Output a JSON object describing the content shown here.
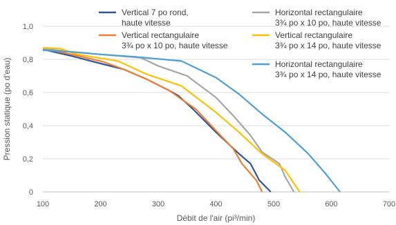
{
  "chart_data": {
    "type": "line",
    "xlabel": "Débit de l'air (pi³/min)",
    "ylabel": "Pression statique (po d'eau)",
    "xlim": [
      100,
      700
    ],
    "ylim": [
      0,
      1.0
    ],
    "x_ticks": [
      "100",
      "200",
      "300",
      "400",
      "500",
      "600",
      "700"
    ],
    "y_ticks": [
      "0",
      "0,2",
      "0,4",
      "0,6",
      "0,8",
      "1,0"
    ],
    "grid": "horizontal",
    "legend_position": "top",
    "series": [
      {
        "name_lines": [
          "Vertical 7 po rond,",
          "haute vitesse"
        ],
        "color": "#2e5597",
        "points": [
          [
            100,
            0.86
          ],
          [
            150,
            0.82
          ],
          [
            200,
            0.775
          ],
          [
            240,
            0.74
          ],
          [
            280,
            0.68
          ],
          [
            320,
            0.61
          ],
          [
            335,
            0.58
          ],
          [
            360,
            0.5
          ],
          [
            400,
            0.36
          ],
          [
            440,
            0.23
          ],
          [
            460,
            0.17
          ],
          [
            475,
            0.07
          ],
          [
            495,
            0.0
          ]
        ]
      },
      {
        "name_lines": [
          "Vertical rectangulaire",
          "3¾ po x 10 po, haute vitesse"
        ],
        "color": "#ed7d31",
        "points": [
          [
            100,
            0.865
          ],
          [
            150,
            0.83
          ],
          [
            205,
            0.785
          ],
          [
            240,
            0.74
          ],
          [
            280,
            0.68
          ],
          [
            320,
            0.61
          ],
          [
            340,
            0.56
          ],
          [
            365,
            0.5
          ],
          [
            400,
            0.37
          ],
          [
            430,
            0.26
          ],
          [
            445,
            0.17
          ],
          [
            470,
            0.07
          ],
          [
            480,
            0.0
          ]
        ]
      },
      {
        "name_lines": [
          "Horizontal rectangulaire",
          "3¾ po x 10 po, haute vitesse"
        ],
        "color": "#a5a5a5",
        "points": [
          [
            100,
            0.865
          ],
          [
            150,
            0.845
          ],
          [
            200,
            0.83
          ],
          [
            270,
            0.81
          ],
          [
            300,
            0.76
          ],
          [
            350,
            0.7
          ],
          [
            400,
            0.57
          ],
          [
            430,
            0.46
          ],
          [
            460,
            0.34
          ],
          [
            480,
            0.24
          ],
          [
            510,
            0.17
          ],
          [
            520,
            0.09
          ],
          [
            535,
            0.0
          ]
        ]
      },
      {
        "name_lines": [
          "Vertical rectangulaire",
          "3¾ po x 14 po, haute vitesse"
        ],
        "color": "#ffc000",
        "points": [
          [
            100,
            0.87
          ],
          [
            130,
            0.865
          ],
          [
            160,
            0.83
          ],
          [
            230,
            0.79
          ],
          [
            280,
            0.71
          ],
          [
            340,
            0.64
          ],
          [
            400,
            0.48
          ],
          [
            440,
            0.36
          ],
          [
            480,
            0.23
          ],
          [
            520,
            0.13
          ],
          [
            545,
            0.0
          ]
        ]
      },
      {
        "name_lines": [
          "Horizontal rectangulaire",
          "3¾ po x 14 po, haute vitesse"
        ],
        "color": "#4a9fd4",
        "points": [
          [
            100,
            0.855
          ],
          [
            150,
            0.845
          ],
          [
            200,
            0.83
          ],
          [
            260,
            0.815
          ],
          [
            340,
            0.79
          ],
          [
            400,
            0.69
          ],
          [
            440,
            0.59
          ],
          [
            480,
            0.47
          ],
          [
            520,
            0.36
          ],
          [
            560,
            0.23
          ],
          [
            590,
            0.11
          ],
          [
            615,
            0.0
          ]
        ]
      }
    ]
  }
}
